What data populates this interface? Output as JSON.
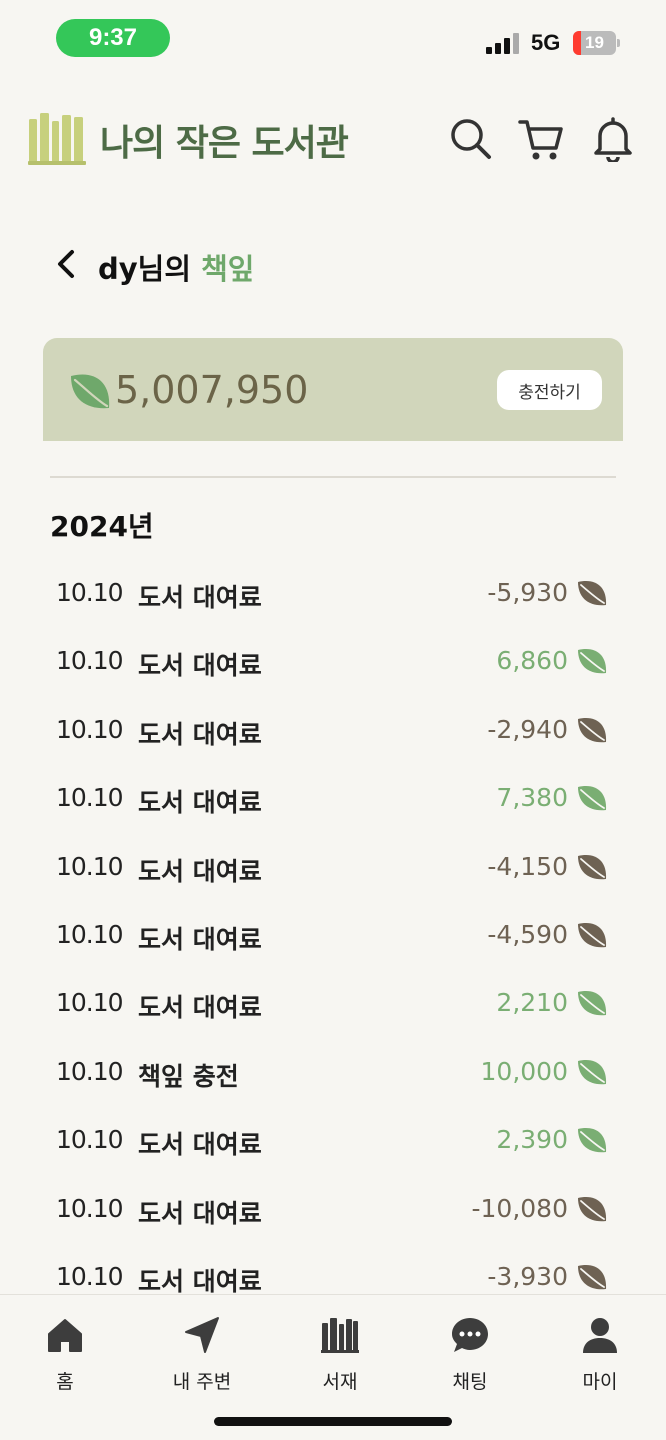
{
  "status_bar": {
    "time": "9:37",
    "network": "5G",
    "battery_percent": "19"
  },
  "header": {
    "title": "나의 작은 도서관",
    "icons": [
      "search-icon",
      "cart-icon",
      "bell-icon"
    ]
  },
  "page": {
    "title_prefix": "dy님의 ",
    "title_accent": "책잎"
  },
  "balance": {
    "amount": "5,007,950",
    "charge_label": "충전하기"
  },
  "history": {
    "year": "2024년",
    "transactions": [
      {
        "date": "10.10",
        "desc": "도서 대여료",
        "amount": "-5,930",
        "type": "debit"
      },
      {
        "date": "10.10",
        "desc": "도서 대여료",
        "amount": "6,860",
        "type": "credit"
      },
      {
        "date": "10.10",
        "desc": "도서 대여료",
        "amount": "-2,940",
        "type": "debit"
      },
      {
        "date": "10.10",
        "desc": "도서 대여료",
        "amount": "7,380",
        "type": "credit"
      },
      {
        "date": "10.10",
        "desc": "도서 대여료",
        "amount": "-4,150",
        "type": "debit"
      },
      {
        "date": "10.10",
        "desc": "도서 대여료",
        "amount": "-4,590",
        "type": "debit"
      },
      {
        "date": "10.10",
        "desc": "도서 대여료",
        "amount": "2,210",
        "type": "credit"
      },
      {
        "date": "10.10",
        "desc": "책잎 충전",
        "amount": "10,000",
        "type": "credit"
      },
      {
        "date": "10.10",
        "desc": "도서 대여료",
        "amount": "2,390",
        "type": "credit"
      },
      {
        "date": "10.10",
        "desc": "도서 대여료",
        "amount": "-10,080",
        "type": "debit"
      },
      {
        "date": "10.10",
        "desc": "도서 대여료",
        "amount": "-3,930",
        "type": "debit"
      }
    ]
  },
  "nav": {
    "items": [
      {
        "label": "홈",
        "icon": "home-icon"
      },
      {
        "label": "내 주변",
        "icon": "location-arrow-icon"
      },
      {
        "label": "서재",
        "icon": "bookshelf-icon"
      },
      {
        "label": "채팅",
        "icon": "chat-bubble-icon"
      },
      {
        "label": "마이",
        "icon": "person-icon"
      }
    ]
  },
  "colors": {
    "brand_green": "#4d6b46",
    "accent_green": "#6fa86b",
    "credit_green": "#7aae73",
    "debit_brown": "#6e6253",
    "card_bg": "#d1d6bb",
    "time_pill": "#34c759"
  }
}
